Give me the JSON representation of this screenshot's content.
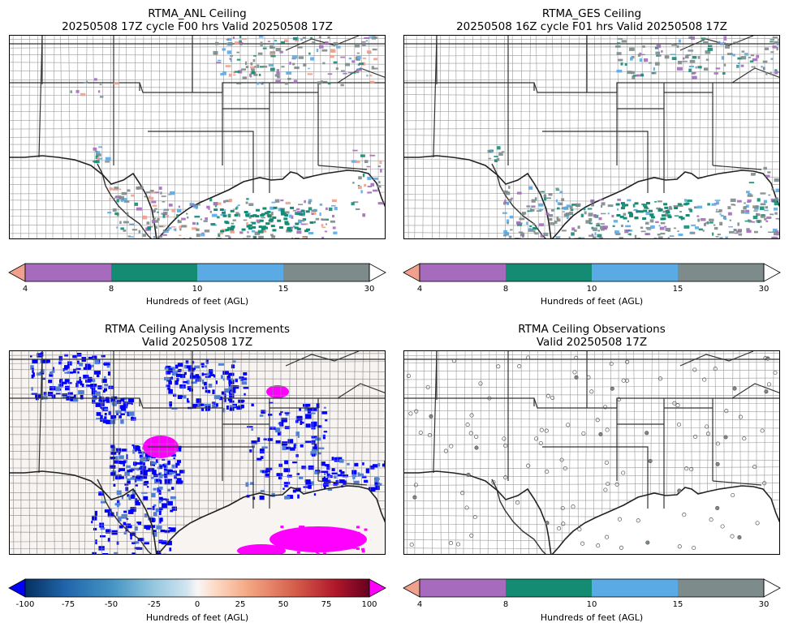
{
  "panels": [
    {
      "id": "anl",
      "title_line1": "RTMA_ANL Ceiling",
      "title_line2": "20250508 17Z cycle F00 hrs Valid 20250508 17Z"
    },
    {
      "id": "ges",
      "title_line1": "RTMA_GES Ceiling",
      "title_line2": "20250508 16Z cycle F01 hrs Valid 20250508 17Z"
    },
    {
      "id": "inc",
      "title_line1": "RTMA Ceiling Analysis Increments",
      "title_line2": "Valid 20250508 17Z"
    },
    {
      "id": "obs",
      "title_line1": "RTMA Ceiling Observations",
      "title_line2": "Valid 20250508 17Z"
    }
  ],
  "ceiling_colorbar": {
    "label": "Hundreds of feet (AGL)",
    "ticks": [
      "4",
      "8",
      "10",
      "15",
      "30"
    ],
    "under_color": "#f0a08c",
    "colors": [
      "#a66bbd",
      "#148c73",
      "#5aaae6",
      "#7d8b8b"
    ],
    "over_color": "#ffffff"
  },
  "increment_colorbar": {
    "label": "Hundreds of feet (AGL)",
    "ticks": [
      "-100",
      "-75",
      "-50",
      "-25",
      "0",
      "25",
      "50",
      "75",
      "100"
    ],
    "under_color": "#0000ff",
    "over_color": "#ff00ff",
    "cmap": "RdBu_r"
  }
}
